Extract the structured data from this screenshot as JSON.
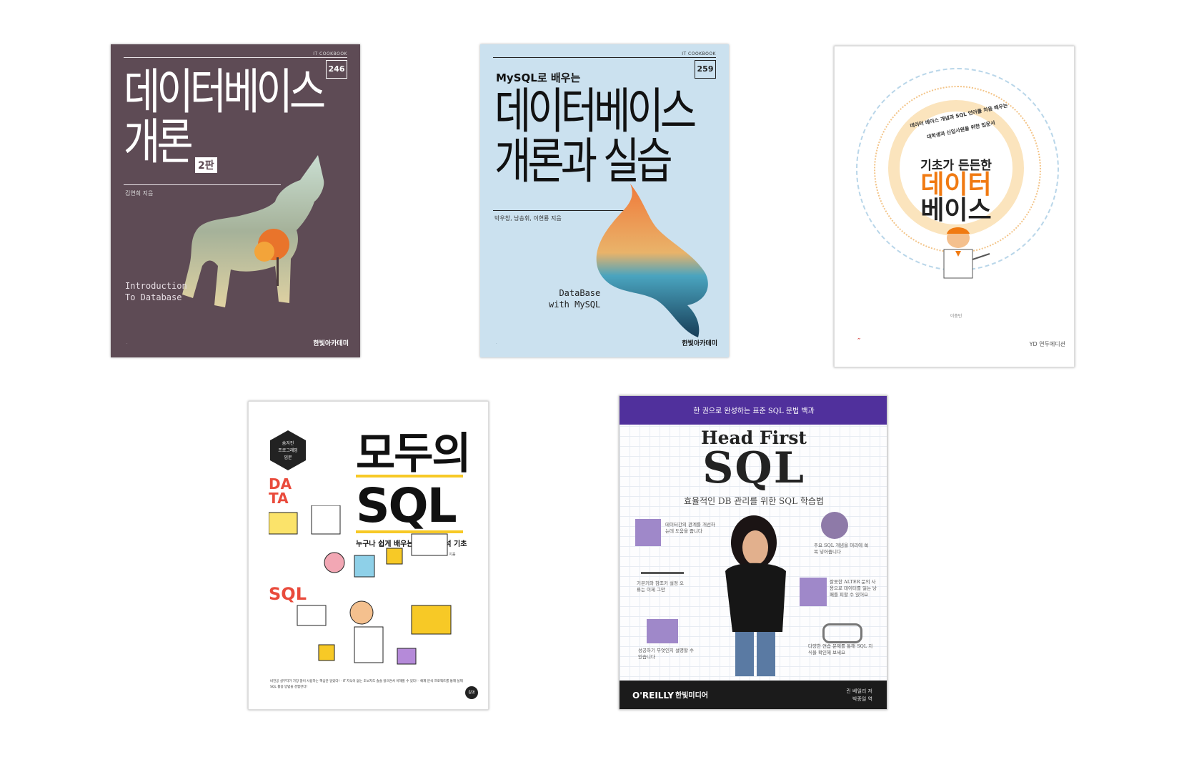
{
  "books": [
    {
      "series": "IT COOKBOOK",
      "number": "246",
      "title_line1": "데이터베이스",
      "title_line2": "개론",
      "edition": "2판",
      "author": "김연희 지음",
      "english_title": "Introduction\nTo Database",
      "publisher": "한빛아카데미",
      "bg_color": "#5e4b55"
    },
    {
      "series": "IT COOKBOOK",
      "number": "259",
      "subtitle": "MySQL로 배우는",
      "title_line1": "데이터베이스",
      "title_line2": "개론과 실습",
      "author": "박우창, 남송휘, 이현룡 지음",
      "english_title": "DataBase\nwith MySQL",
      "publisher": "한빛아카데미",
      "bg_color": "#cbe1ef"
    },
    {
      "curve_line1": "데이터 베이스 개념과 SQL 언어를 처음 배우는",
      "curve_line2": "대학생과 신입사원을 위한 입문서",
      "title_line0": "기초가 든든한",
      "title_line1": "데이터",
      "title_line2": "베이스",
      "author": "이충민",
      "publisher": "YD 연두에디션",
      "accent_color": "#f07a12"
    },
    {
      "badge": "숨겨진\n프로그래밍\n입문",
      "title_line1": "모두의",
      "title_line2": "SQL",
      "subtitle": "누구나 쉽게 배우는 데이터 분석 기초",
      "author": "김도연 지음",
      "data_label": "DA\nTA",
      "sql_label": "SQL",
      "blurb": "비전공 실무자가 가장 많이 사용하는 핵심만 알았다! · IT 지식이 없는 초보자도 술술 읽으면서 이해할 수 있다! · 예제 분석 프로젝트를 통해 실제 SQL 활용 방법을 경험한다!",
      "logo": "길벗",
      "accent_color": "#f7c926"
    },
    {
      "topline": "한 권으로 완성하는 표준 SQL 문법 백과",
      "title_line1": "Head First",
      "title_line2": "SQL",
      "subtitle": "효율적인 DB 관리를 위한 SQL 학습법",
      "annotations": [
        "데이터간의 관계를 개선하는데 도움을 줍니다",
        "주요 SQL 개념을 머리에 쏙쏙 넣어줍니다",
        "기본키와 참조키 설정 오류는 이제 그만",
        "잘못한 ALTER 문의 사용으로 데이터를 잃는 낭패를 피할 수 있어요",
        "성공하기 무엇인지 설명할 수 있습니다",
        "다양한 연습 문제를 통해 SQL 지식을 확인해 보세요"
      ],
      "brand": "O'REILLY",
      "publisher": "한빛미디어",
      "authors_line1": "린 베일리 저",
      "authors_line2": "박종일 역",
      "band_color": "#50309c"
    }
  ]
}
